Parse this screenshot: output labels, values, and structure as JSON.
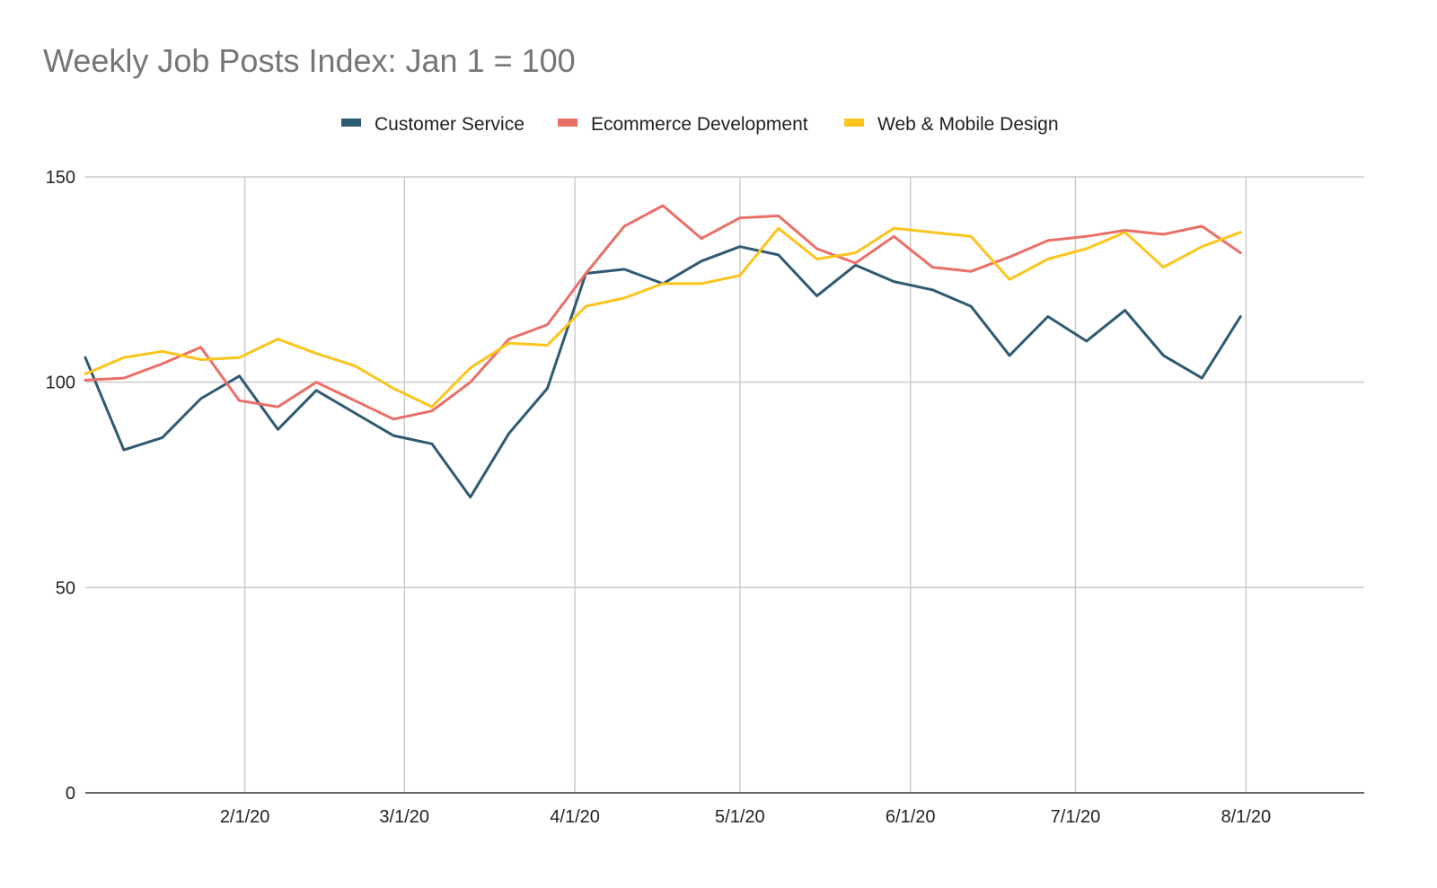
{
  "chart_data": {
    "type": "line",
    "title": "Weekly Job Posts Index: Jan 1 = 100",
    "xlabel": "",
    "ylabel": "",
    "ylim": [
      0,
      150
    ],
    "y_ticks": [
      0,
      50,
      100,
      150
    ],
    "x_ticks": [
      "2/1/20",
      "3/1/20",
      "4/1/20",
      "5/1/20",
      "6/1/20",
      "7/1/20",
      "8/1/20"
    ],
    "x_tick_days": [
      31,
      60,
      91,
      121,
      152,
      182,
      213
    ],
    "x": [
      "1/3/20",
      "1/10/20",
      "1/17/20",
      "1/24/20",
      "1/31/20",
      "2/7/20",
      "2/14/20",
      "2/21/20",
      "2/28/20",
      "3/6/20",
      "3/13/20",
      "3/20/20",
      "3/27/20",
      "4/3/20",
      "4/10/20",
      "4/17/20",
      "4/24/20",
      "5/1/20",
      "5/8/20",
      "5/15/20",
      "5/22/20",
      "5/29/20",
      "6/5/20",
      "6/12/20",
      "6/19/20",
      "6/26/20",
      "7/3/20",
      "7/10/20",
      "7/17/20",
      "7/24/20",
      "7/31/20",
      "8/7/20"
    ],
    "x_days": [
      2,
      9,
      16,
      23,
      30,
      37,
      44,
      51,
      58,
      65,
      72,
      79,
      86,
      93,
      100,
      107,
      114,
      121,
      128,
      135,
      142,
      149,
      156,
      163,
      170,
      177,
      184,
      191,
      198,
      205,
      212,
      219
    ],
    "grid": true,
    "legend_position": "top-center",
    "series": [
      {
        "name": "Customer Service",
        "color": "#2e5a72",
        "values": [
          106,
          83.5,
          86.5,
          96,
          101.5,
          88.5,
          98,
          92.5,
          87,
          85,
          72,
          87.5,
          98.5,
          126.5,
          127.5,
          124,
          129.5,
          133,
          131,
          121,
          128.5,
          124.5,
          122.5,
          118.5,
          106.5,
          116,
          110,
          117.5,
          106.5,
          101,
          116,
          null
        ]
      },
      {
        "name": "Ecommerce Development",
        "color": "#ea6f67",
        "values": [
          100.5,
          101,
          104.5,
          108.5,
          95.5,
          94,
          100,
          95.5,
          91,
          93,
          100,
          110.5,
          114,
          126.5,
          138,
          143,
          135,
          140,
          140.5,
          132.5,
          129,
          135.5,
          128,
          127,
          130.5,
          134.5,
          135.5,
          137,
          136,
          138,
          131.5,
          null
        ]
      },
      {
        "name": "Web & Mobile Design",
        "color": "#fbc51d",
        "values": [
          102,
          106,
          107.5,
          105.5,
          106,
          110.5,
          107,
          104,
          98.5,
          94,
          103.5,
          109.5,
          109,
          118.5,
          120.5,
          124,
          124,
          126,
          137.5,
          130,
          131.5,
          137.5,
          136.5,
          135.5,
          125,
          130,
          132.5,
          136.5,
          128,
          133,
          136.5,
          null
        ]
      }
    ]
  }
}
